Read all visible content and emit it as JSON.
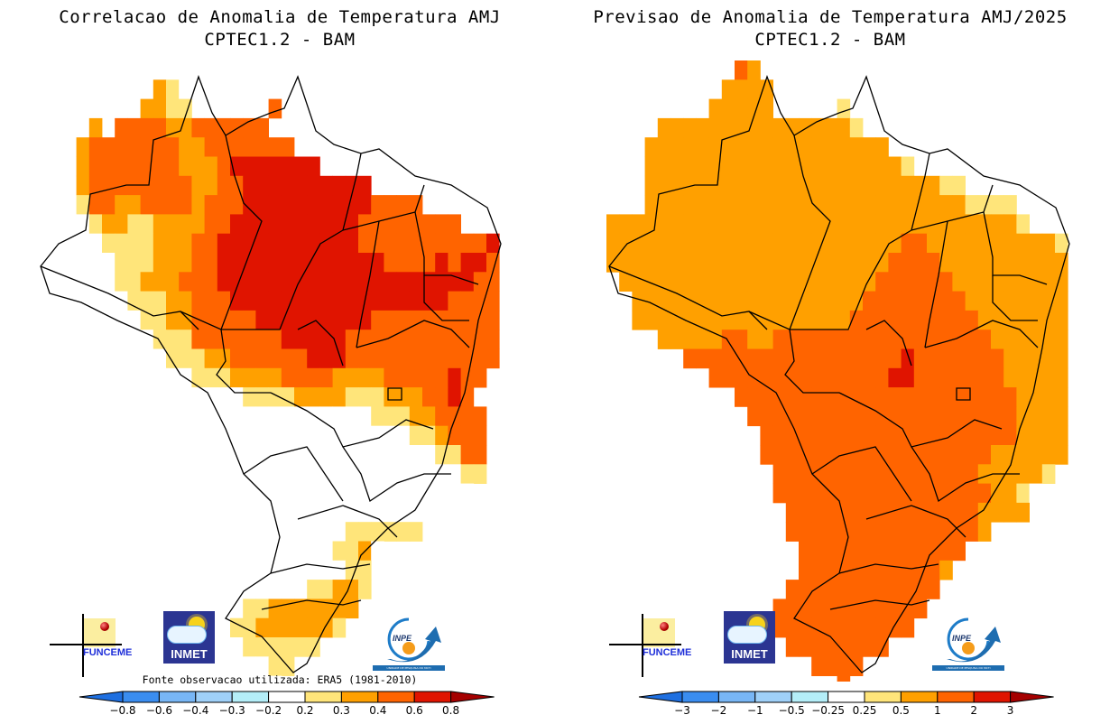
{
  "panels": [
    {
      "id": "correlation",
      "title_line1": "Correlacao de Anomalia de Temperatura AMJ",
      "title_line2": "CPTEC1.2 - BAM",
      "source_note": "Fonte observacao utilizada: ERA5 (1981-2010)",
      "logos": [
        "FUNCEME",
        "INMET",
        "INPE"
      ],
      "logo_inpe_caption": "UNIDADE DE PESQUISA DO MCTI",
      "colorbar": {
        "ticks": [
          "-0.8",
          "-0.6",
          "-0.4",
          "-0.3",
          "-0.2",
          "0.2",
          "0.3",
          "0.4",
          "0.6",
          "0.8"
        ],
        "colors": [
          "#1e6fe0",
          "#3a8df0",
          "#78b6f5",
          "#9fd0f8",
          "#b4eef8",
          "#ffffff",
          "#ffe57a",
          "#ffa000",
          "#ff6400",
          "#e01400",
          "#a50000"
        ]
      }
    },
    {
      "id": "forecast",
      "title_line1": "Previsao de Anomalia de Temperatura AMJ/2025",
      "title_line2": "CPTEC1.2 - BAM",
      "logos": [
        "FUNCEME",
        "INMET",
        "INPE"
      ],
      "logo_inpe_caption": "UNIDADE DE PESQUISA DO MCTI",
      "colorbar": {
        "ticks": [
          "-3",
          "-2",
          "-1",
          "-0.5",
          "-0.25",
          "0.25",
          "0.5",
          "1",
          "2",
          "3"
        ],
        "colors": [
          "#1e6fe0",
          "#3a8df0",
          "#78b6f5",
          "#9fd0f8",
          "#b4eef8",
          "#ffffff",
          "#ffe57a",
          "#ffa000",
          "#ff6400",
          "#e01400",
          "#a50000"
        ]
      }
    }
  ],
  "map_region": "Brazil",
  "map_fields": {
    "correlation_rows": [
      "..........WW..........................",
      ".........OYW..........................",
      "........OOYY......R...................",
      "....O.RRRROORRRRRR....................",
      "...ORRRRRRROORRRRRRR..................",
      "...ORRRRRRROOORDDDDDDD................",
      "...ORRRRRRRROORRDDDDDDDDDD............",
      "...YRROORRRRORRRDDDDDDDDDDRRRR........",
      "WWWWYOOYYOOOORRDDDDDDDDDDRRRRRRRR.....",
      "WWWWWYYYYOOORRDDDDDDDDDDDRRRRRRRRRRD..",
      "WWWWWWYYYOOORRDDDDDDDDDDDDDRRRRDRDDR..",
      ".WWWWWYYOOORRRDDDDDDDDDDDDDDDDDDDDRR..",
      "..WWWWWYYYOORRRDDDDDDDDDDDDDDDDDRRRR..",
      "..WWWWWWYYOORRRRRDDDDDDDDDRRRRRRRRRR..",
      "....WWWWWYYYRRRRRRRDDDDDRRRRRRRRRRRR..",
      "......WWWWYYYOORRRRRRDDDRRRRRRRRRRRR..",
      "........WWWWYYYOOOORRRROOOORRRRRDRR...",
      "..........WWWWWWYYYYOOOOYYYOOORRDR....",
      "...........WWWWWWWWWWWWWWWYYYOORRRR...",
      "............WWWWWWWWWWWWWWWWWYYORRR...",
      "............WWWWWWWWWWWWWWWWWWWYYRR...",
      ".............WWWWWWWWWWWWWWWWWWWWYY...",
      ".............WWWWWWWWWWWWWWWWWWWWW....",
      "..............WWWWWWWWWWWWWWWWWWW.....",
      "..............WWWWWWWWWWYYYYYY........",
      "...............WWWWWWWWYYOW...........",
      "...............WWWWWWWWWYY............",
      "..............WWWWWWWYYOOY............",
      ".............WWWYYOOOOOOO.............",
      "............WWWYYOOOOOOY..............",
      "..............WWYYYYYY................",
      "................WWYY..................",
      "..................W..................."
    ],
    "forecast_rows": [
      "..........RO..........................",
      ".........OOOO.........................",
      "........OOOOO.....Y...................",
      "....OOOOOOOOOOOOOOOY..................",
      "...OOOOOOOOOOOOOOOOOOO................",
      "...OOOOOOOOOOOOOOOOOOOOY..............",
      "...OOOOOOOOOOOOOOOOOOOOOOOYY..........",
      "...OOOOOOOOOOOOOOOOOOOOOOOOOYYYY......",
      "OOOOOOOOOOOOOOOOOOOOOOOOOOOOOOOOY.....",
      "OOOOOOOOOOOOOOOOOOOOOOORROOOOOOOOOOY..",
      "OOOOOOOOOOOOOOOOOOOOOORRRROOOOOOOOOO..",
      ".OOOOOOOOOOOOOOOOOOOORRRRRROOOOOOOOO..",
      "..OOOOOOOOOOOOOOOOOORRRRRRRROOOOOOOO..",
      "..OOOOOOOOOOOOOOOOORRRRRRRRRROOOOOOO..",
      "....OOOOORROORRRRRRRRRRRRRRRRROOOOOO..",
      "......RRRRRRRRRRRRRRRRRDRRRRRRROOOOO..",
      "........RRRRRRRRRRRRRRDDRRRRRRROOOOO..",
      "..........RRRRRRRRRRRRRRRRRRRRRROOOO..",
      "...........RRRRRRRRRRRRRRRRRRRRROOOO..",
      "............RRRRRRRRRRRRRRRRRRRROOOO..",
      "............RRRRRRRRRRRRRRRRRROOOOOO..",
      ".............RRRRRRRRRRRRRRRROOOOOY...",
      ".............RRRRRRRRRRRRRRRRROOYW....",
      "..............RRRRRRRRRRRRRRROOOO.....",
      "..............RRRRRRRRRRRRRRRO........",
      "...............RRRRRRRRRRRRR..........",
      "...............RRRRRRRRRRRO...........",
      "..............RRRRRRRRRRRR............",
      ".............RRRRRRRRRRRR.............",
      "............RRRRRRRRRRRR..............",
      "..............RRRRRRRR................",
      "................RRRR..................",
      "..................R..................."
    ],
    "legend_key": {
      "W": "#ffffff",
      "Y": "#ffe57a",
      "O": "#ffa000",
      "R": "#ff6400",
      "D": "#e01400"
    }
  }
}
